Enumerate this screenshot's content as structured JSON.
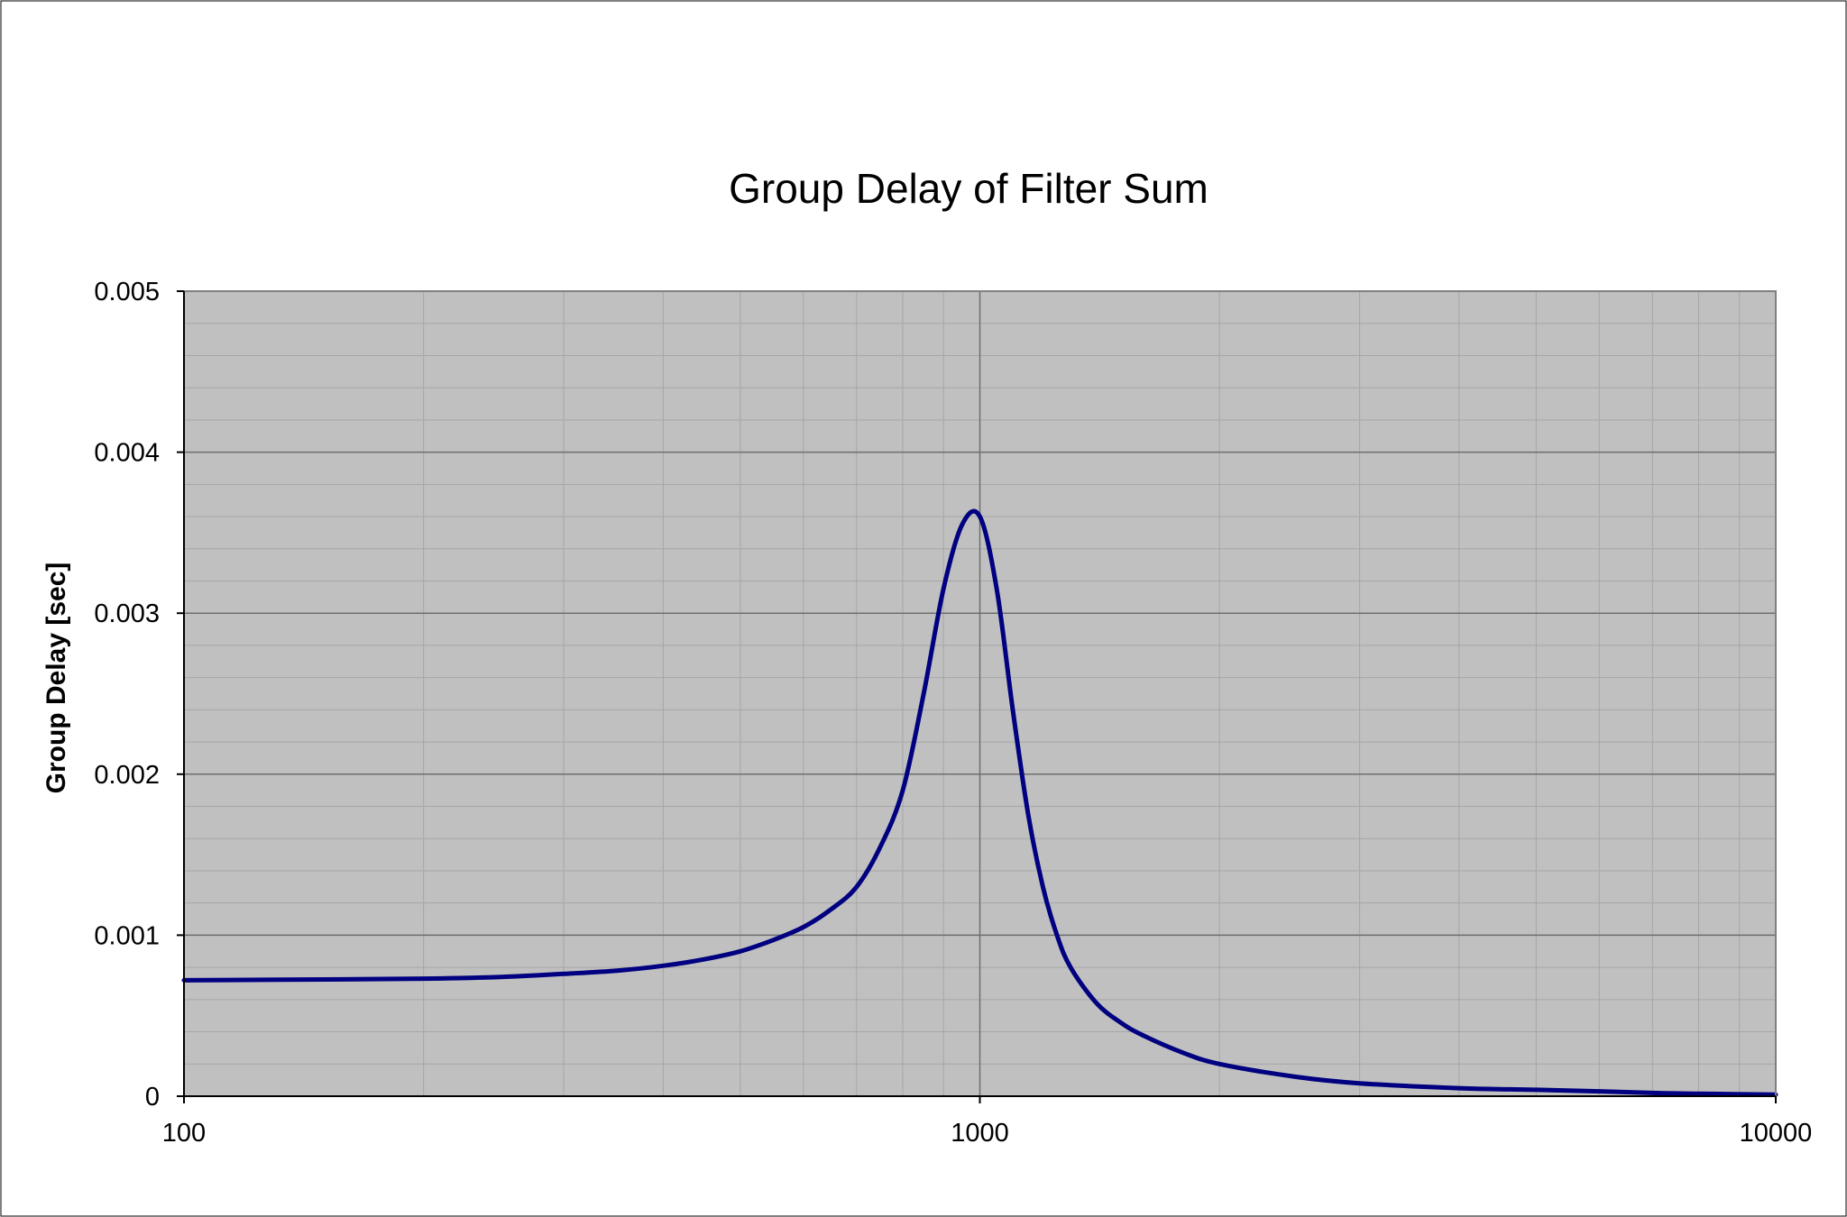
{
  "chart_data": {
    "type": "line",
    "title": "Group Delay of Filter Sum",
    "xlabel": "",
    "ylabel": "Group Delay [sec]",
    "x_scale": "log",
    "xlim": [
      100,
      10000
    ],
    "ylim": [
      0,
      0.005
    ],
    "x_ticks": [
      {
        "value": 100,
        "label": "100"
      },
      {
        "value": 1000,
        "label": "1000"
      },
      {
        "value": 10000,
        "label": "10000"
      }
    ],
    "y_ticks": [
      {
        "value": 0,
        "label": "0"
      },
      {
        "value": 0.001,
        "label": "0.001"
      },
      {
        "value": 0.002,
        "label": "0.002"
      },
      {
        "value": 0.003,
        "label": "0.003"
      },
      {
        "value": 0.004,
        "label": "0.004"
      },
      {
        "value": 0.005,
        "label": "0.005"
      }
    ],
    "grid": true,
    "legend": "none",
    "plot_background": "#c0c0c0",
    "series": [
      {
        "color": "#000080",
        "x": [
          100,
          150,
          200,
          250,
          300,
          350,
          400,
          450,
          500,
          550,
          600,
          650,
          700,
          750,
          800,
          850,
          900,
          950,
          1000,
          1050,
          1100,
          1150,
          1200,
          1250,
          1300,
          1400,
          1500,
          1600,
          1800,
          2000,
          2500,
          3000,
          4000,
          5000,
          6000,
          7000,
          8000,
          10000
        ],
        "y": [
          0.00072,
          0.000725,
          0.00073,
          0.00074,
          0.00076,
          0.00078,
          0.00081,
          0.00085,
          0.0009,
          0.00097,
          0.00105,
          0.00116,
          0.0013,
          0.00155,
          0.0019,
          0.0025,
          0.00315,
          0.00355,
          0.0036,
          0.00315,
          0.0024,
          0.00175,
          0.0013,
          0.001,
          0.0008,
          0.00058,
          0.00046,
          0.00038,
          0.00027,
          0.0002,
          0.00012,
          8e-05,
          5e-05,
          4e-05,
          3e-05,
          2e-05,
          1.5e-05,
          1e-05
        ]
      }
    ]
  }
}
